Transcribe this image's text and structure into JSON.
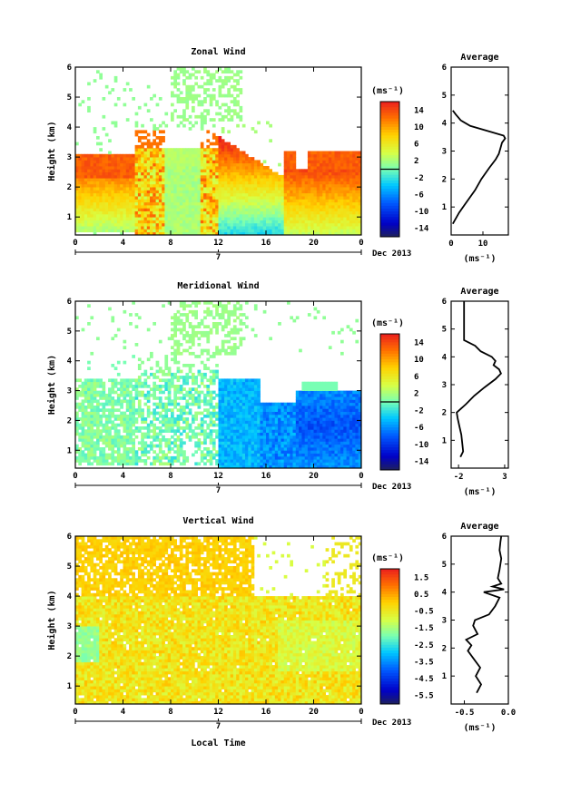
{
  "chart_data": [
    {
      "type": "heatmap",
      "title": "Zonal Wind",
      "ylabel": "Height (km)",
      "x_ticks": [
        "0",
        "4",
        "8",
        "12",
        "16",
        "20",
        "0"
      ],
      "y_ticks": [
        "1",
        "2",
        "3",
        "4",
        "5",
        "6"
      ],
      "date_center": "7",
      "date_right": "Dec 2013",
      "ylim": [
        0.4,
        6
      ],
      "xlim": [
        0,
        24
      ],
      "colorbar": {
        "unit": "(ms⁻¹)",
        "ticks": [
          "14",
          "10",
          "6",
          "2",
          "-2",
          "-6",
          "-10",
          "-14"
        ],
        "range": [
          -16,
          16
        ],
        "zero_line": true
      },
      "profile": {
        "title": "Average",
        "xlabel": "(ms⁻¹)",
        "x_ticks": [
          "0",
          "10"
        ],
        "xlim": [
          0,
          18
        ],
        "y_ticks": [
          "1",
          "2",
          "3",
          "4",
          "5",
          "6"
        ],
        "ylim": [
          0,
          6
        ],
        "height_km": [
          0.4,
          0.8,
          1.2,
          1.6,
          2.0,
          2.4,
          2.7,
          2.9,
          3.1,
          3.3,
          3.45,
          3.55,
          3.7,
          3.9,
          4.1,
          4.3,
          4.45
        ],
        "speed": [
          0.5,
          2.5,
          5,
          7.5,
          9.5,
          12,
          14,
          15,
          15.5,
          16,
          17,
          16.5,
          12,
          6,
          3,
          1.5,
          0.5
        ]
      }
    },
    {
      "type": "heatmap",
      "title": "Meridional Wind",
      "ylabel": "Height (km)",
      "x_ticks": [
        "0",
        "4",
        "8",
        "12",
        "16",
        "20",
        "0"
      ],
      "y_ticks": [
        "1",
        "2",
        "3",
        "4",
        "5",
        "6"
      ],
      "date_center": "7",
      "date_right": "Dec 2013",
      "ylim": [
        0.4,
        6
      ],
      "xlim": [
        0,
        24
      ],
      "colorbar": {
        "unit": "(ms⁻¹)",
        "ticks": [
          "14",
          "10",
          "6",
          "2",
          "-2",
          "-6",
          "-10",
          "-14"
        ],
        "range": [
          -16,
          16
        ],
        "zero_line": true
      },
      "profile": {
        "title": "Average",
        "xlabel": "(ms⁻¹)",
        "x_ticks": [
          "-2",
          "3"
        ],
        "xlim": [
          -2.8,
          3.4
        ],
        "y_ticks": [
          "1",
          "2",
          "3",
          "4",
          "5",
          "6"
        ],
        "ylim": [
          0,
          6
        ],
        "height_km": [
          0.4,
          0.6,
          0.9,
          1.2,
          1.5,
          1.8,
          2.0,
          2.3,
          2.6,
          2.9,
          3.2,
          3.4,
          3.55,
          3.7,
          3.85,
          4.0,
          4.2,
          4.4,
          4.6,
          5.0,
          5.5,
          6.0
        ],
        "speed": [
          -1.8,
          -1.5,
          -1.6,
          -1.7,
          -1.9,
          -2.1,
          -2.2,
          -1.2,
          -0.3,
          0.8,
          2.0,
          2.6,
          2.4,
          1.8,
          2.0,
          1.6,
          0.4,
          -0.2,
          -1.4,
          -1.4,
          -1.4,
          -1.4
        ]
      }
    },
    {
      "type": "heatmap",
      "title": "Vertical Wind",
      "ylabel": "Height (km)",
      "xlabel": "Local Time",
      "x_ticks": [
        "0",
        "4",
        "8",
        "12",
        "16",
        "20",
        "0"
      ],
      "y_ticks": [
        "1",
        "2",
        "3",
        "4",
        "5",
        "6"
      ],
      "date_center": "7",
      "date_right": "Dec 2013",
      "ylim": [
        0.4,
        6
      ],
      "xlim": [
        0,
        24
      ],
      "colorbar": {
        "unit": "(ms⁻¹)",
        "ticks": [
          "1.5",
          "0.5",
          "-0.5",
          "-1.5",
          "-2.5",
          "-3.5",
          "-4.5",
          "-5.5"
        ],
        "range": [
          -6,
          2
        ],
        "zero_line": false
      },
      "profile": {
        "title": "Average",
        "xlabel": "(ms⁻¹)",
        "x_ticks": [
          "-0.5",
          "0.0"
        ],
        "xlim": [
          -0.65,
          0.0
        ],
        "y_ticks": [
          "1",
          "2",
          "3",
          "4",
          "5",
          "6"
        ],
        "ylim": [
          0,
          6
        ],
        "height_km": [
          0.4,
          0.7,
          1.0,
          1.3,
          1.6,
          1.9,
          2.1,
          2.3,
          2.5,
          2.8,
          3.0,
          3.2,
          3.5,
          3.8,
          4.0,
          4.1,
          4.2,
          4.3,
          4.5,
          4.8,
          5.2,
          5.5,
          5.8,
          6.0
        ],
        "speed": [
          -0.36,
          -0.31,
          -0.37,
          -0.32,
          -0.39,
          -0.46,
          -0.42,
          -0.48,
          -0.35,
          -0.4,
          -0.38,
          -0.22,
          -0.15,
          -0.1,
          -0.28,
          -0.05,
          -0.18,
          -0.08,
          -0.12,
          -0.1,
          -0.08,
          -0.1,
          -0.09,
          -0.08
        ]
      }
    }
  ]
}
